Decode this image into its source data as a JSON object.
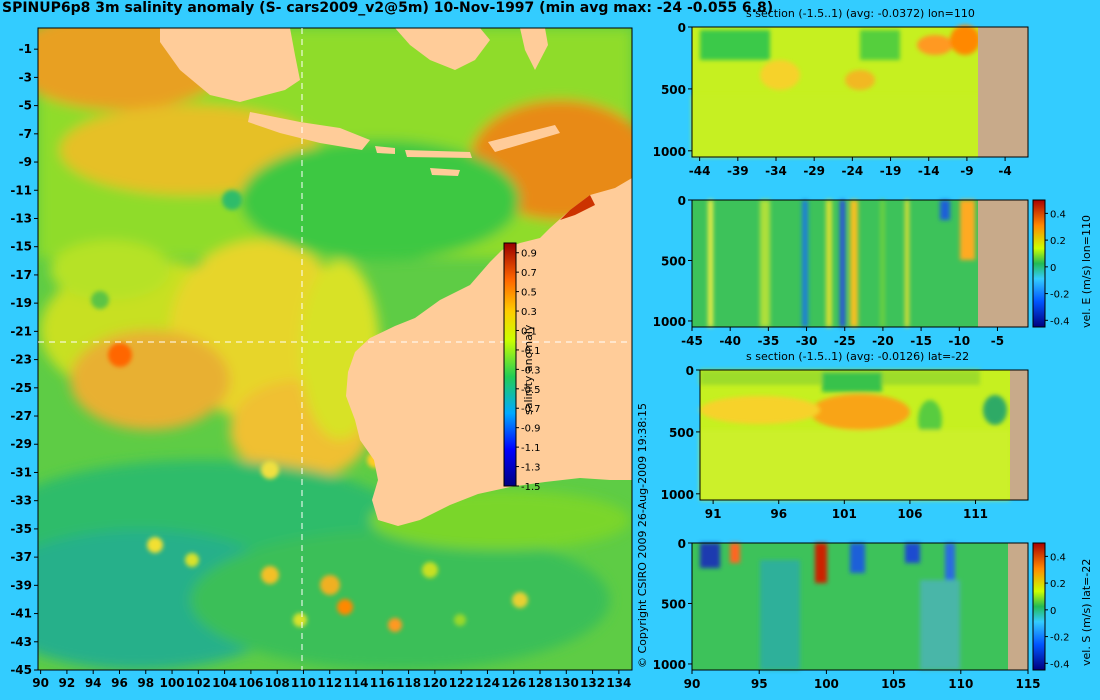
{
  "title": "SPINUP6p8 3m salinity anomaly (S- cars2009_v2@5m) 10-Nov-1997 (min avg max: -24 -0.055 6.8)",
  "copyright": "© Copyright CSIRO 2009   26-Aug-2009 19:38:15",
  "chart_data": [
    {
      "type": "heatmap",
      "name": "map",
      "x_ticks": [
        "90",
        "92",
        "94",
        "96",
        "98",
        "100",
        "102",
        "104",
        "106",
        "108",
        "110",
        "112",
        "114",
        "116",
        "118",
        "120",
        "122",
        "124",
        "126",
        "128",
        "130",
        "132",
        "134"
      ],
      "y_ticks": [
        "-1",
        "-3",
        "-5",
        "-7",
        "-9",
        "-11",
        "-13",
        "-15",
        "-17",
        "-19",
        "-21",
        "-23",
        "-25",
        "-27",
        "-29",
        "-31",
        "-33",
        "-35",
        "-37",
        "-39",
        "-41",
        "-43",
        "-45"
      ],
      "xlim": [
        89.8,
        135
      ],
      "ylim": [
        -45,
        0.5
      ],
      "section_lon": 110,
      "section_lat": -22,
      "colorbar": {
        "label": "salinity anomaly",
        "ticks": [
          "0.9",
          "0.7",
          "0.5",
          "0.3",
          "0.1",
          "-0.1",
          "-0.3",
          "-0.5",
          "-0.7",
          "-0.9",
          "-1.1",
          "-1.3",
          "-1.5"
        ],
        "range": [
          -1.5,
          1.0
        ]
      }
    },
    {
      "type": "heatmap",
      "name": "s-section-lon",
      "title": "s section (-1.5..1) (avg: -0.0372) lon=110",
      "x_ticks": [
        "-44",
        "-39",
        "-34",
        "-29",
        "-24",
        "-19",
        "-14",
        "-9",
        "-4"
      ],
      "y_ticks": [
        "0",
        "500",
        "1000"
      ],
      "xlim": [
        -45,
        -1
      ],
      "ylim": [
        1050,
        0
      ],
      "land_from": -8.5
    },
    {
      "type": "heatmap",
      "name": "vel-e-section",
      "x_ticks": [
        "-45",
        "-40",
        "-35",
        "-30",
        "-25",
        "-20",
        "-15",
        "-10",
        "-5"
      ],
      "y_ticks": [
        "0",
        "500",
        "1000"
      ],
      "xlim": [
        -45,
        -1
      ],
      "ylim": [
        1050,
        0
      ],
      "land_from": -8.5,
      "colorbar": {
        "label": "vel. E (m/s) lon=110",
        "ticks": [
          "0.4",
          "0.2",
          "0",
          "-0.2",
          "-0.4"
        ],
        "range": [
          -0.45,
          0.5
        ]
      }
    },
    {
      "type": "heatmap",
      "name": "s-section-lat",
      "title": "s section (-1.5..1) (avg: -0.0126) lat=-22",
      "x_ticks": [
        "91",
        "96",
        "101",
        "106",
        "111"
      ],
      "y_ticks": [
        "0",
        "500",
        "1000"
      ],
      "xlim": [
        90,
        115
      ],
      "ylim": [
        1050,
        0
      ],
      "land_from": 113.7
    },
    {
      "type": "heatmap",
      "name": "vel-s-section",
      "x_ticks": [
        "90",
        "95",
        "100",
        "105",
        "110",
        "115"
      ],
      "y_ticks": [
        "0",
        "500",
        "1000"
      ],
      "xlim": [
        90,
        115
      ],
      "ylim": [
        1050,
        0
      ],
      "land_from": 113.7,
      "colorbar": {
        "label": "vel. S (m/s) lat=-22",
        "ticks": [
          "0.4",
          "0.2",
          "0",
          "-0.2",
          "-0.4"
        ],
        "range": [
          -0.45,
          0.5
        ]
      }
    }
  ]
}
